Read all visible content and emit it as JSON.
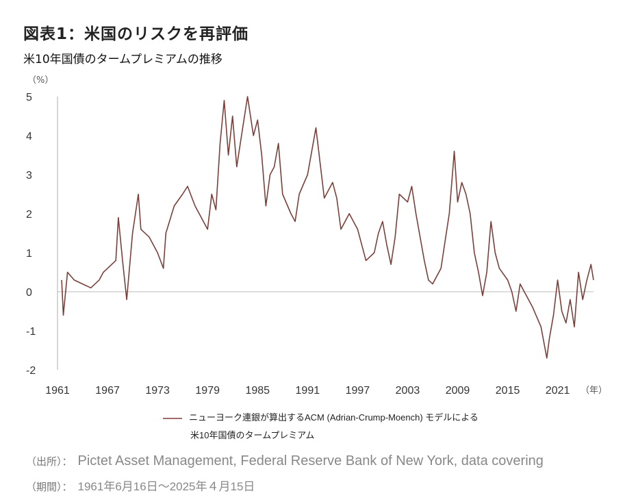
{
  "title": "図表1：米国のリスクを再評価",
  "subtitle": "米10年国債のタームプレミアムの推移",
  "source_label": "（出所）：",
  "source_text": "Pictet Asset Management, Federal Reserve Bank of New York, data covering",
  "period_label": "（期間）：",
  "period_text": "1961年6月16日～2025年４月15日",
  "colors": {
    "line": "#7b3f3a",
    "axis": "#c8c8c8",
    "zero": "#bbbbbb"
  },
  "chart_data": {
    "type": "line",
    "title": "米10年国債のタームプレミアムの推移",
    "ylabel": "（%）",
    "xlabel": "（年）",
    "ylim": [
      -2,
      5
    ],
    "xlim": [
      1961,
      2025.3
    ],
    "yticks": [
      5,
      4,
      3,
      2,
      1,
      0,
      -1,
      -2
    ],
    "xticks": [
      1961,
      1967,
      1973,
      1979,
      1985,
      1991,
      1997,
      2003,
      2009,
      2015,
      2021
    ],
    "grid": false,
    "legend_position": "bottom",
    "series": [
      {
        "name": "ニューヨーク連銀が算出するACM (Adrian-Crump-Moench) モデルによる",
        "name_line2": "米10年国債のタームプレミアム",
        "points": [
          [
            1961.5,
            0.3
          ],
          [
            1961.7,
            -0.6
          ],
          [
            1962.2,
            0.5
          ],
          [
            1963,
            0.3
          ],
          [
            1964,
            0.2
          ],
          [
            1965,
            0.1
          ],
          [
            1966,
            0.3
          ],
          [
            1966.5,
            0.5
          ],
          [
            1967,
            0.6
          ],
          [
            1968,
            0.8
          ],
          [
            1968.3,
            1.9
          ],
          [
            1968.8,
            0.8
          ],
          [
            1969.3,
            -0.2
          ],
          [
            1970,
            1.5
          ],
          [
            1970.7,
            2.5
          ],
          [
            1971,
            1.6
          ],
          [
            1972,
            1.4
          ],
          [
            1973,
            1.0
          ],
          [
            1973.7,
            0.6
          ],
          [
            1974,
            1.5
          ],
          [
            1975,
            2.2
          ],
          [
            1976,
            2.5
          ],
          [
            1976.6,
            2.7
          ],
          [
            1977.5,
            2.2
          ],
          [
            1978,
            2.0
          ],
          [
            1979,
            1.6
          ],
          [
            1979.5,
            2.5
          ],
          [
            1980,
            2.1
          ],
          [
            1980.5,
            3.8
          ],
          [
            1981,
            4.9
          ],
          [
            1981.5,
            3.5
          ],
          [
            1982,
            4.5
          ],
          [
            1982.5,
            3.2
          ],
          [
            1983,
            3.9
          ],
          [
            1983.8,
            5.0
          ],
          [
            1984.5,
            4.0
          ],
          [
            1985,
            4.4
          ],
          [
            1985.5,
            3.5
          ],
          [
            1986,
            2.2
          ],
          [
            1986.5,
            3.0
          ],
          [
            1987,
            3.2
          ],
          [
            1987.5,
            3.8
          ],
          [
            1988,
            2.5
          ],
          [
            1989,
            2.0
          ],
          [
            1989.5,
            1.8
          ],
          [
            1990,
            2.5
          ],
          [
            1991,
            3.0
          ],
          [
            1991.5,
            3.6
          ],
          [
            1992,
            4.2
          ],
          [
            1992.5,
            3.3
          ],
          [
            1993,
            2.4
          ],
          [
            1994,
            2.8
          ],
          [
            1994.5,
            2.4
          ],
          [
            1995,
            1.6
          ],
          [
            1996,
            2.0
          ],
          [
            1997,
            1.6
          ],
          [
            1998,
            0.8
          ],
          [
            1999,
            1.0
          ],
          [
            1999.5,
            1.5
          ],
          [
            2000,
            1.8
          ],
          [
            2000.5,
            1.2
          ],
          [
            2001,
            0.7
          ],
          [
            2001.5,
            1.4
          ],
          [
            2002,
            2.5
          ],
          [
            2003,
            2.3
          ],
          [
            2003.5,
            2.7
          ],
          [
            2004,
            2.0
          ],
          [
            2005,
            0.8
          ],
          [
            2005.5,
            0.3
          ],
          [
            2006,
            0.2
          ],
          [
            2007,
            0.6
          ],
          [
            2007.5,
            1.3
          ],
          [
            2008,
            2.0
          ],
          [
            2008.6,
            3.6
          ],
          [
            2009,
            2.3
          ],
          [
            2009.5,
            2.8
          ],
          [
            2010,
            2.5
          ],
          [
            2010.5,
            2.0
          ],
          [
            2011,
            1.0
          ],
          [
            2011.5,
            0.5
          ],
          [
            2012,
            -0.1
          ],
          [
            2012.5,
            0.5
          ],
          [
            2013,
            1.8
          ],
          [
            2013.5,
            1.0
          ],
          [
            2014,
            0.6
          ],
          [
            2015,
            0.3
          ],
          [
            2015.5,
            0.0
          ],
          [
            2016,
            -0.5
          ],
          [
            2016.5,
            0.2
          ],
          [
            2017,
            0.0
          ],
          [
            2018,
            -0.4
          ],
          [
            2019,
            -0.9
          ],
          [
            2019.7,
            -1.7
          ],
          [
            2020,
            -1.2
          ],
          [
            2020.5,
            -0.6
          ],
          [
            2021,
            0.3
          ],
          [
            2021.5,
            -0.5
          ],
          [
            2022,
            -0.8
          ],
          [
            2022.5,
            -0.2
          ],
          [
            2023,
            -0.9
          ],
          [
            2023.5,
            0.5
          ],
          [
            2024,
            -0.2
          ],
          [
            2024.5,
            0.3
          ],
          [
            2025,
            0.7
          ],
          [
            2025.3,
            0.3
          ]
        ]
      }
    ]
  }
}
